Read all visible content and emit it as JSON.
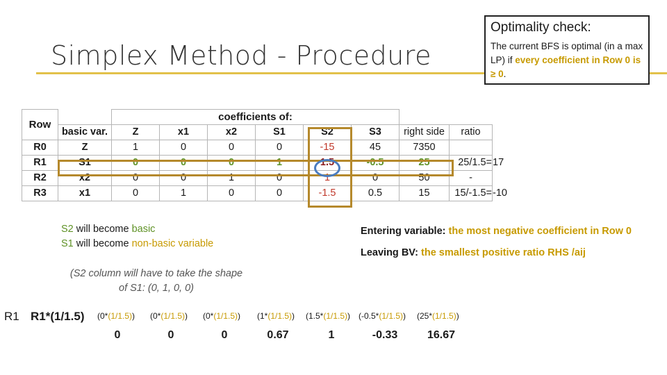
{
  "title": "Simplex Method - Procedure",
  "optimality": {
    "heading": "Optimality check:",
    "text_part1": "The current BFS is optimal (in a max LP) if ",
    "text_highlight": "every coefficient in Row 0 is ≥ 0",
    "text_part2": "."
  },
  "table": {
    "header_row": "Row",
    "header_basic": "basic var.",
    "header_coeff": "coefficients of:",
    "columns": [
      "Z",
      "x1",
      "x2",
      "S1",
      "S2",
      "S3"
    ],
    "header_rhs": "right side",
    "header_ratio": "ratio",
    "rows": [
      {
        "row": "R0",
        "basic": "Z",
        "vals": [
          "1",
          "0",
          "0",
          "0",
          "-15",
          "45"
        ],
        "rhs": "7350",
        "ratio": "",
        "ratio_val": ""
      },
      {
        "row": "R1",
        "basic": "S1",
        "vals": [
          "0",
          "0",
          "0",
          "1",
          "1.5",
          "-0.5"
        ],
        "rhs": "25",
        "ratio": "25/1.5=",
        "ratio_val": "17"
      },
      {
        "row": "R2",
        "basic": "x2",
        "vals": [
          "0",
          "0",
          "1",
          "0",
          "1",
          "0"
        ],
        "rhs": "50",
        "ratio": "-",
        "ratio_val": ""
      },
      {
        "row": "R3",
        "basic": "x1",
        "vals": [
          "0",
          "1",
          "0",
          "0",
          "-1.5",
          "0.5"
        ],
        "rhs": "15",
        "ratio": "15/-1.5=",
        "ratio_val": "-10"
      }
    ]
  },
  "notes": {
    "s2_label": "S2",
    "s2_text": " will become ",
    "s2_tail": "basic",
    "s1_label": "S1",
    "s1_text": " will become ",
    "s1_tail": "non-basic variable",
    "entering_label": "Entering variable: ",
    "entering_text": "the most negative coefficient in Row 0",
    "leaving_label": "Leaving BV: ",
    "leaving_text": "the smallest positive ratio RHS /aij",
    "aside": "(S2 column will have to take the shape of S1: (0, 1, 0, 0)"
  },
  "calc": {
    "row_label": "R1",
    "operation": "R1*(1/1.5)",
    "divisor": "(1/1.5)",
    "terms": [
      {
        "pre": "(0*",
        "post": ")"
      },
      {
        "pre": "(0*",
        "post": ")"
      },
      {
        "pre": "(0*",
        "post": ")"
      },
      {
        "pre": "(1*",
        "post": ")"
      },
      {
        "pre": "(1.5*",
        "post": ")"
      },
      {
        "pre": "(-0.5*",
        "post": ")"
      },
      {
        "pre": "(25*",
        "post": ")"
      }
    ],
    "results": [
      "0",
      "0",
      "0",
      "0.67",
      "1",
      "-0.33",
      "16.67"
    ]
  },
  "colors": {
    "accent_gold": "#c79a00",
    "accent_green": "#5f9226",
    "highlight_border": "#b5892c",
    "circle": "#4a7cc0"
  }
}
